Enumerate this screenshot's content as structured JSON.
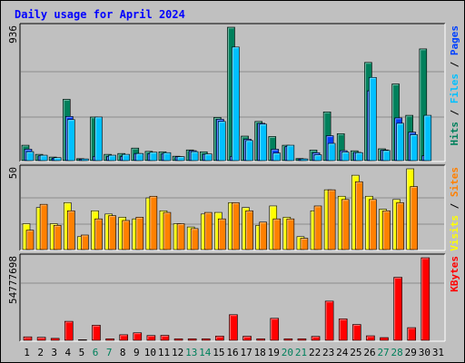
{
  "title": "Daily usage for April 2024",
  "colors": {
    "background": "#c0c0c0",
    "plot": "#c0c0c0",
    "title": "#0000ff",
    "hits": "#00805c",
    "files": "#00c0ff",
    "pages": "#0040ff",
    "visits": "#ffff00",
    "sites": "#ff8000",
    "kbytes": "#ff0000",
    "weekend_label": "#00805c",
    "weekday_label": "#000000"
  },
  "chart_data": [
    {
      "type": "bar",
      "name": "hits-files-pages",
      "ymax_label": "936",
      "ylim": [
        0,
        936
      ],
      "legend": [
        {
          "label": "Hits",
          "color": "#00805c"
        },
        {
          "label": "Files",
          "color": "#00c0ff"
        },
        {
          "label": "Pages",
          "color": "#0040ff"
        }
      ],
      "categories": [
        "1",
        "2",
        "3",
        "4",
        "5",
        "6",
        "7",
        "8",
        "9",
        "10",
        "11",
        "12",
        "13",
        "14",
        "15",
        "16",
        "17",
        "18",
        "19",
        "20",
        "21",
        "22",
        "23",
        "24",
        "25",
        "26",
        "27",
        "28",
        "29",
        "30",
        "31"
      ],
      "weekend_days": [
        "6",
        "7",
        "13",
        "14",
        "20",
        "21",
        "27",
        "28"
      ],
      "series": [
        {
          "name": "Hits",
          "values": [
            108,
            44,
            25,
            430,
            14,
            306,
            44,
            50,
            88,
            65,
            62,
            31,
            75,
            62,
            303,
            936,
            172,
            275,
            169,
            108,
            15,
            74,
            342,
            189,
            69,
            689,
            83,
            538,
            318,
            784,
            0
          ]
        },
        {
          "name": "Files",
          "values": [
            63,
            38,
            21,
            288,
            12,
            306,
            38,
            44,
            50,
            59,
            56,
            28,
            63,
            47,
            275,
            797,
            141,
            256,
            53,
            108,
            12,
            41,
            121,
            60,
            56,
            584,
            71,
            262,
            182,
            318,
            0
          ]
        },
        {
          "name": "Pages",
          "values": [
            80,
            34,
            18,
            310,
            10,
            30,
            30,
            30,
            50,
            50,
            50,
            28,
            70,
            45,
            290,
            30,
            150,
            262,
            80,
            100,
            12,
            55,
            175,
            70,
            58,
            490,
            75,
            300,
            200,
            35,
            0
          ]
        }
      ]
    },
    {
      "type": "bar",
      "name": "visits-sites",
      "ymax_label": "50",
      "ylim": [
        0,
        50
      ],
      "legend": [
        {
          "label": "Visits",
          "color": "#ffff00"
        },
        {
          "label": "Sites",
          "color": "#ff8000"
        }
      ],
      "categories": [
        "1",
        "2",
        "3",
        "4",
        "5",
        "6",
        "7",
        "8",
        "9",
        "10",
        "11",
        "12",
        "13",
        "14",
        "15",
        "16",
        "17",
        "18",
        "19",
        "20",
        "21",
        "22",
        "23",
        "24",
        "25",
        "26",
        "27",
        "28",
        "29",
        "30",
        "31"
      ],
      "series": [
        {
          "name": "Visits",
          "values": [
            16,
            26,
            16,
            29,
            8,
            24,
            22,
            20,
            19,
            32,
            24,
            16,
            14,
            22,
            23,
            29,
            26,
            15,
            27,
            20,
            8,
            24,
            37,
            33,
            46,
            33,
            25,
            31,
            50,
            0,
            0
          ]
        },
        {
          "name": "Sites",
          "values": [
            12,
            28,
            15,
            24,
            9,
            19,
            21,
            18,
            20,
            33,
            23,
            16,
            13,
            23,
            19,
            29,
            24,
            17,
            19,
            19,
            7,
            27,
            37,
            31,
            42,
            31,
            24,
            29,
            39,
            0,
            0
          ]
        }
      ]
    },
    {
      "type": "bar",
      "name": "kbytes",
      "ymax_label": "54777698",
      "ylim": [
        0,
        54777698
      ],
      "legend": [
        {
          "label": "KBytes",
          "color": "#ff0000"
        }
      ],
      "categories": [
        "1",
        "2",
        "3",
        "4",
        "5",
        "6",
        "7",
        "8",
        "9",
        "10",
        "11",
        "12",
        "13",
        "14",
        "15",
        "16",
        "17",
        "18",
        "19",
        "20",
        "21",
        "22",
        "23",
        "24",
        "25",
        "26",
        "27",
        "28",
        "29",
        "30",
        "31"
      ],
      "series": [
        {
          "name": "KBytes",
          "values": [
            2300000,
            2000000,
            1300000,
            12600000,
            400000,
            10000000,
            1000000,
            3700000,
            5000000,
            3200000,
            3300000,
            1000000,
            1000000,
            1000000,
            2800000,
            17000000,
            2700000,
            1000000,
            14600000,
            1000000,
            1000000,
            2600000,
            26000000,
            14200000,
            10500000,
            3000000,
            1800000,
            41800000,
            8400000,
            54777698,
            0
          ]
        }
      ]
    }
  ]
}
